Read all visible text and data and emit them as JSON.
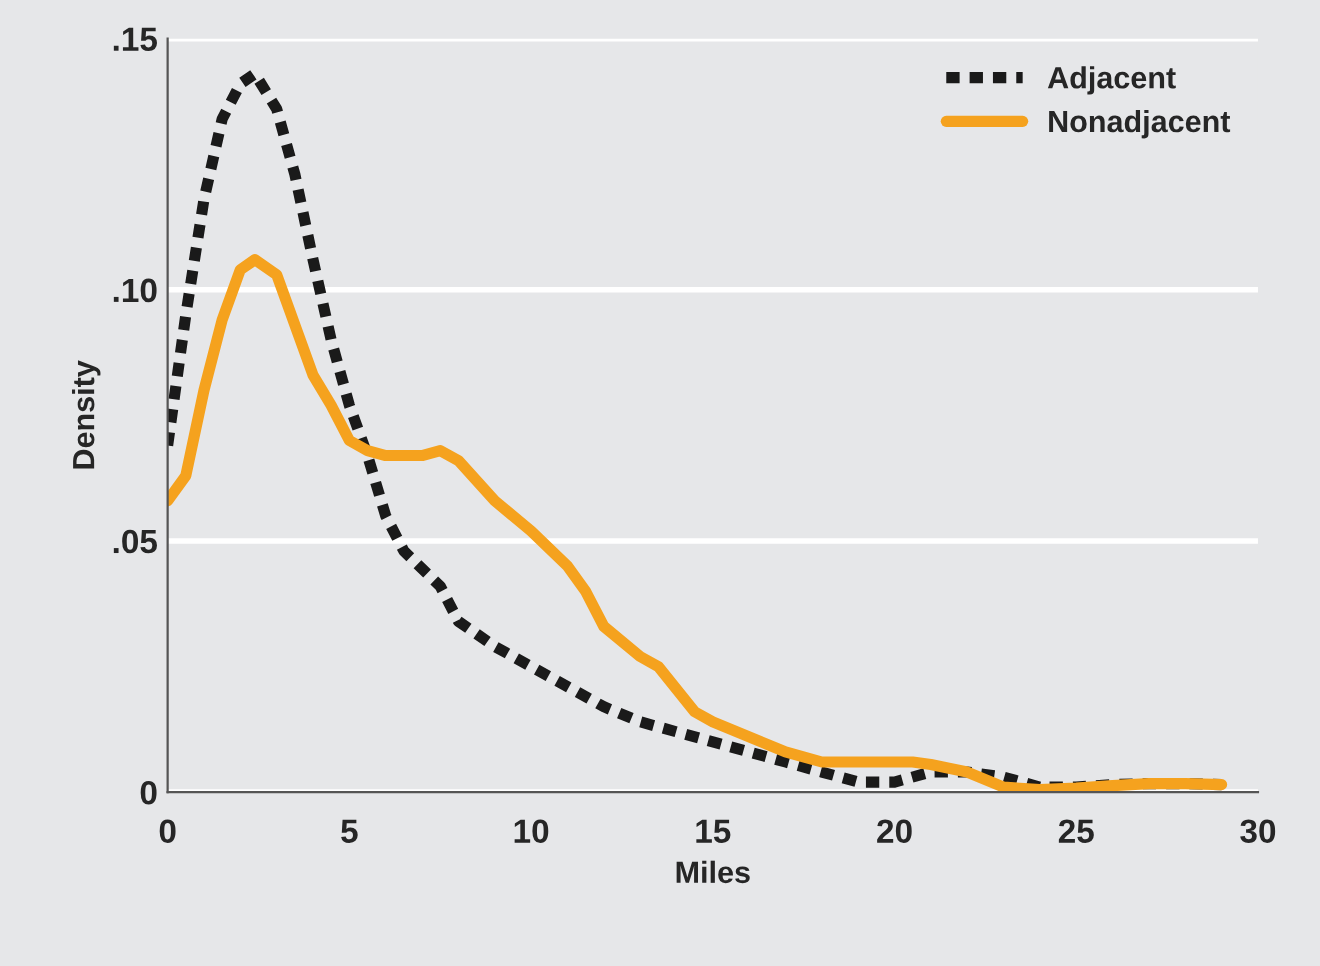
{
  "chart_data": {
    "type": "line",
    "xlabel": "Miles",
    "ylabel": "Density",
    "xlim": [
      0,
      30
    ],
    "xticks": [
      0,
      5,
      10,
      15,
      20,
      25,
      30
    ],
    "ylim": [
      0,
      0.15
    ],
    "yticks": [
      {
        "value": 0,
        "label": "0"
      },
      {
        "value": 0.05,
        "label": ".05"
      },
      {
        "value": 0.1,
        "label": ".10"
      },
      {
        "value": 0.15,
        "label": ".15"
      }
    ],
    "grid": "y",
    "legend": "top right",
    "series": [
      {
        "name": "Adjacent",
        "color": "#1a1a1a",
        "line_style": "dotted",
        "x": [
          0,
          0.5,
          1,
          1.5,
          2,
          2.4,
          3,
          3.5,
          4,
          4.5,
          5,
          5.5,
          6,
          6.5,
          7.5,
          8,
          9,
          10,
          11,
          12,
          13,
          14,
          15,
          16,
          17,
          18,
          19,
          20,
          21,
          22,
          23,
          24,
          25,
          26,
          27,
          28,
          29
        ],
        "values": [
          0.069,
          0.095,
          0.118,
          0.134,
          0.141,
          0.143,
          0.136,
          0.123,
          0.106,
          0.09,
          0.077,
          0.067,
          0.055,
          0.048,
          0.041,
          0.034,
          0.029,
          0.025,
          0.021,
          0.017,
          0.014,
          0.012,
          0.01,
          0.008,
          0.006,
          0.004,
          0.002,
          0.002,
          0.004,
          0.004,
          0.003,
          0.001,
          0.001,
          0.0015,
          0.0017,
          0.0017,
          0.0015
        ]
      },
      {
        "name": "Nonadjacent",
        "color": "#f5a21e",
        "line_style": "solid",
        "x": [
          0,
          0.5,
          1,
          1.5,
          2,
          2.4,
          3,
          3.5,
          4,
          4.5,
          5,
          5.5,
          6,
          7,
          7.5,
          8,
          9,
          10,
          11,
          11.5,
          12,
          13,
          13.5,
          14.5,
          15,
          16,
          17,
          18,
          19,
          20.5,
          21,
          22,
          23,
          24,
          25,
          26,
          27,
          28,
          29
        ],
        "values": [
          0.058,
          0.063,
          0.08,
          0.094,
          0.104,
          0.106,
          0.103,
          0.093,
          0.083,
          0.077,
          0.07,
          0.068,
          0.067,
          0.067,
          0.068,
          0.066,
          0.058,
          0.052,
          0.045,
          0.04,
          0.033,
          0.027,
          0.025,
          0.016,
          0.014,
          0.011,
          0.008,
          0.006,
          0.006,
          0.006,
          0.0055,
          0.004,
          0.001,
          0.0005,
          0.0008,
          0.0013,
          0.0017,
          0.0017,
          0.0015
        ]
      }
    ]
  }
}
